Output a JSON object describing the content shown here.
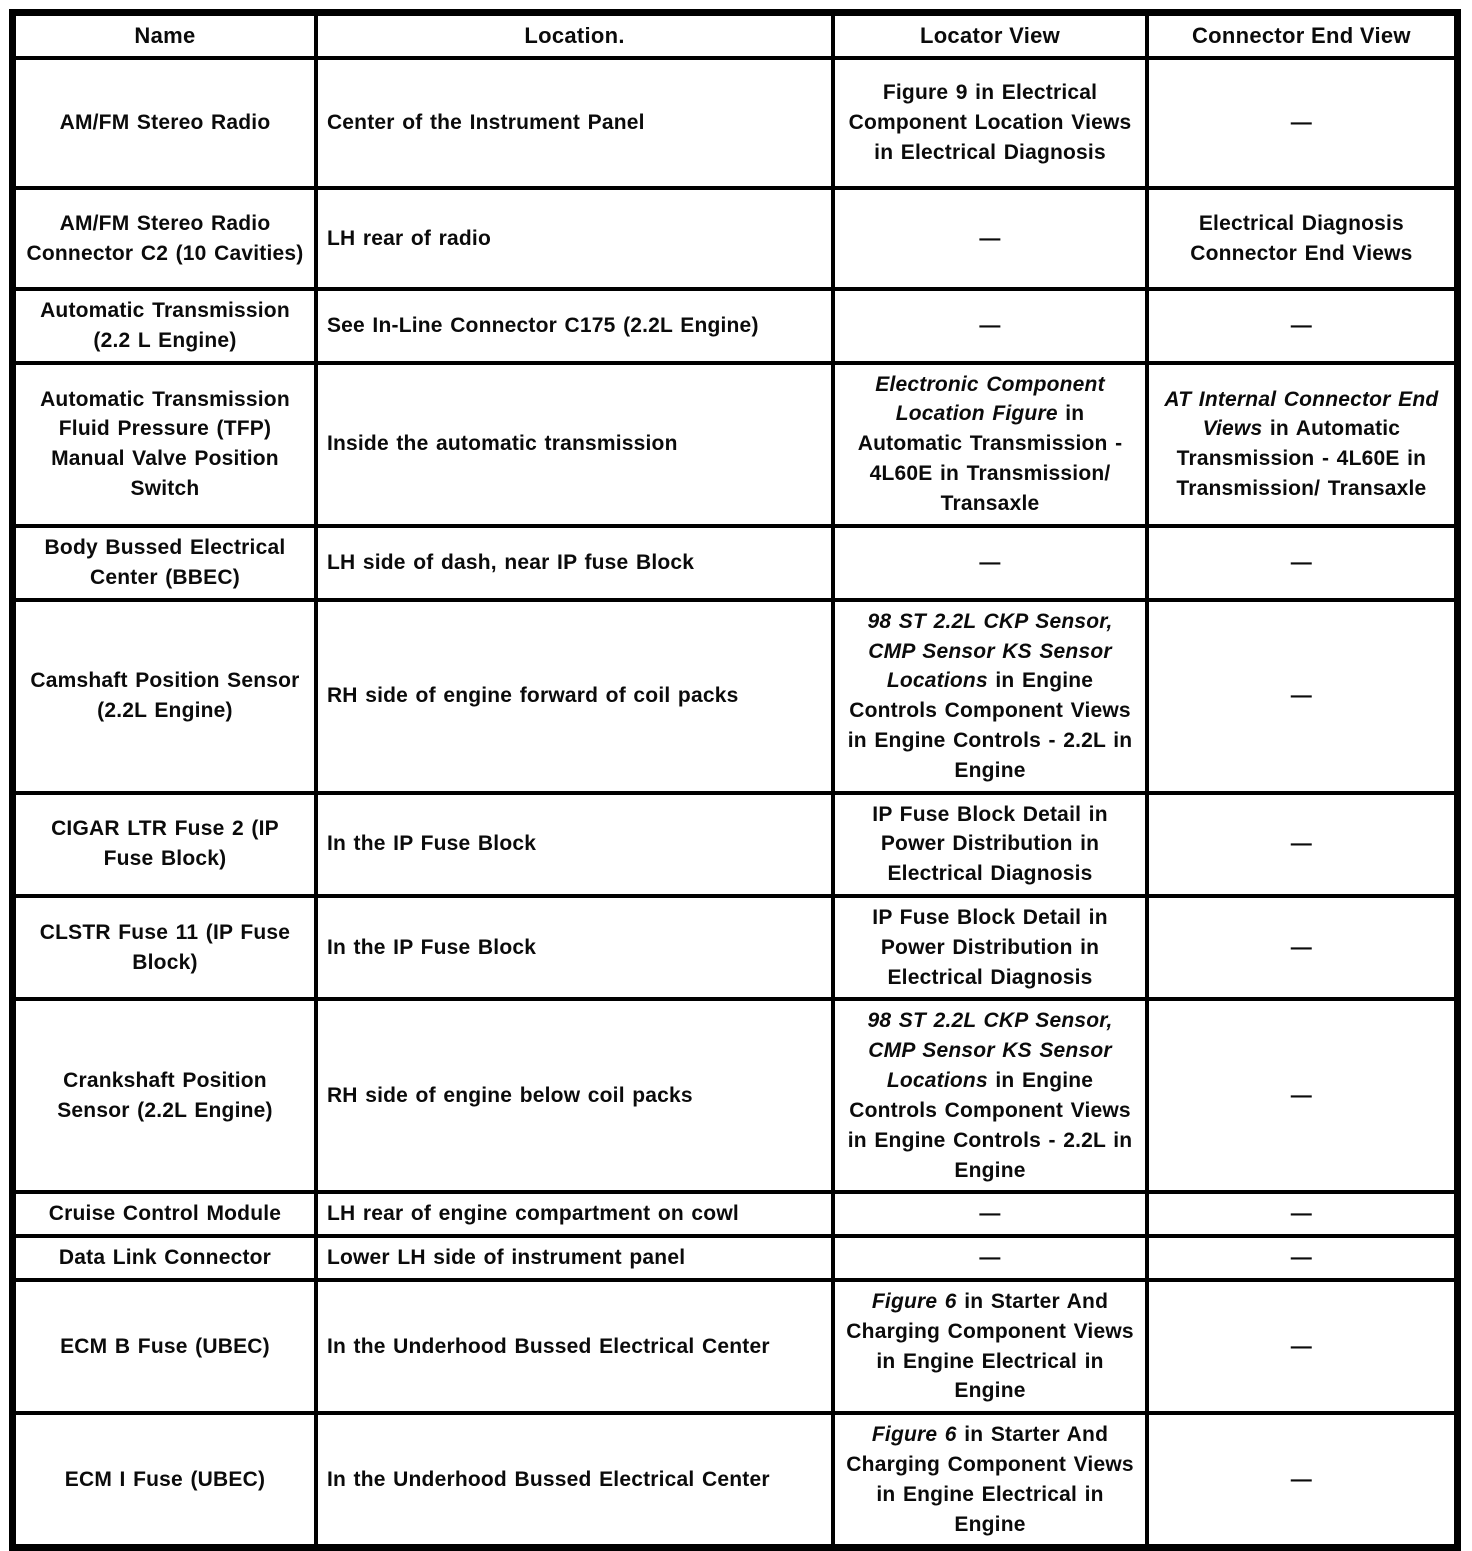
{
  "colors": {
    "background": "#ffffff",
    "border": "#000000",
    "text": "#0b0b0b"
  },
  "table": {
    "columns": [
      {
        "label": "Name"
      },
      {
        "label": "Location."
      },
      {
        "label": "Locator View"
      },
      {
        "label": "Connector End View"
      }
    ],
    "rows": [
      {
        "name": "AM/FM Stereo Radio",
        "location": "Center of the Instrument Panel",
        "locator_view": "Figure 9 in Electrical Component Location Views in Electrical Diagnosis",
        "connector_end_view": "—"
      },
      {
        "name": "AM/FM Stereo Radio Connector C2 (10 Cavities)",
        "location": "LH rear of radio",
        "locator_view": "—",
        "connector_end_view": "Electrical Diagnosis Connector End Views"
      },
      {
        "name": "Automatic Transmission (2.2 L Engine)",
        "location": "See In-Line Connector C175 (2.2L Engine)",
        "locator_view": "—",
        "connector_end_view": "—"
      },
      {
        "name": "Automatic Transmission Fluid Pressure (TFP) Manual Valve Position Switch",
        "location": "Inside the automatic transmission",
        "locator_view": [
          {
            "t": "Electronic Component Location Figure",
            "i": true
          },
          {
            "t": " in Automatic Transmission - 4L60E in Transmission/ Transaxle",
            "i": false
          }
        ],
        "connector_end_view": [
          {
            "t": "AT Internal Connector End Views",
            "i": true
          },
          {
            "t": " in Automatic Transmission - 4L60E in Transmission/ Transaxle",
            "i": false
          }
        ]
      },
      {
        "name": "Body Bussed Electrical Center (BBEC)",
        "location": "LH side of dash, near IP fuse Block",
        "locator_view": "—",
        "connector_end_view": "—"
      },
      {
        "name": "Camshaft Position Sensor (2.2L Engine)",
        "location": "RH side of engine forward of coil packs",
        "locator_view": [
          {
            "t": "98 ST 2.2L CKP Sensor, CMP Sensor KS Sensor Locations",
            "i": true
          },
          {
            "t": " in Engine Controls Component Views in Engine Controls - 2.2L in Engine",
            "i": false
          }
        ],
        "connector_end_view": "—"
      },
      {
        "name": "CIGAR LTR Fuse 2 (IP Fuse Block)",
        "location": "In the IP Fuse Block",
        "locator_view": "IP Fuse Block Detail in Power Distribution in Electrical Diagnosis",
        "connector_end_view": "—"
      },
      {
        "name": "CLSTR Fuse 11 (IP Fuse Block)",
        "location": "In the IP Fuse Block",
        "locator_view": "IP Fuse Block Detail in Power Distribution in Electrical Diagnosis",
        "connector_end_view": "—"
      },
      {
        "name": "Crankshaft Position Sensor (2.2L Engine)",
        "location": "RH side of engine below coil packs",
        "locator_view": [
          {
            "t": "98 ST 2.2L CKP Sensor, CMP Sensor KS Sensor Locations",
            "i": true
          },
          {
            "t": " in Engine Controls Component Views in Engine Controls - 2.2L in Engine",
            "i": false
          }
        ],
        "connector_end_view": "—"
      },
      {
        "name": "Cruise Control Module",
        "location": "LH rear of engine compartment on cowl",
        "locator_view": "—",
        "connector_end_view": "—"
      },
      {
        "name": "Data Link Connector",
        "location": "Lower LH side of instrument panel",
        "locator_view": "—",
        "connector_end_view": "—"
      },
      {
        "name": "ECM B Fuse (UBEC)",
        "location": "In the Underhood Bussed Electrical Center",
        "locator_view": [
          {
            "t": "Figure 6",
            "i": true
          },
          {
            "t": " in Starter And Charging Component Views in Engine Electrical in Engine",
            "i": false
          }
        ],
        "connector_end_view": "—"
      },
      {
        "name": "ECM I Fuse (UBEC)",
        "location": "In the Underhood Bussed Electrical Center",
        "locator_view": [
          {
            "t": "Figure 6",
            "i": true
          },
          {
            "t": " in Starter And Charging Component Views in Engine Electrical in Engine",
            "i": false
          }
        ],
        "connector_end_view": "—"
      }
    ]
  }
}
